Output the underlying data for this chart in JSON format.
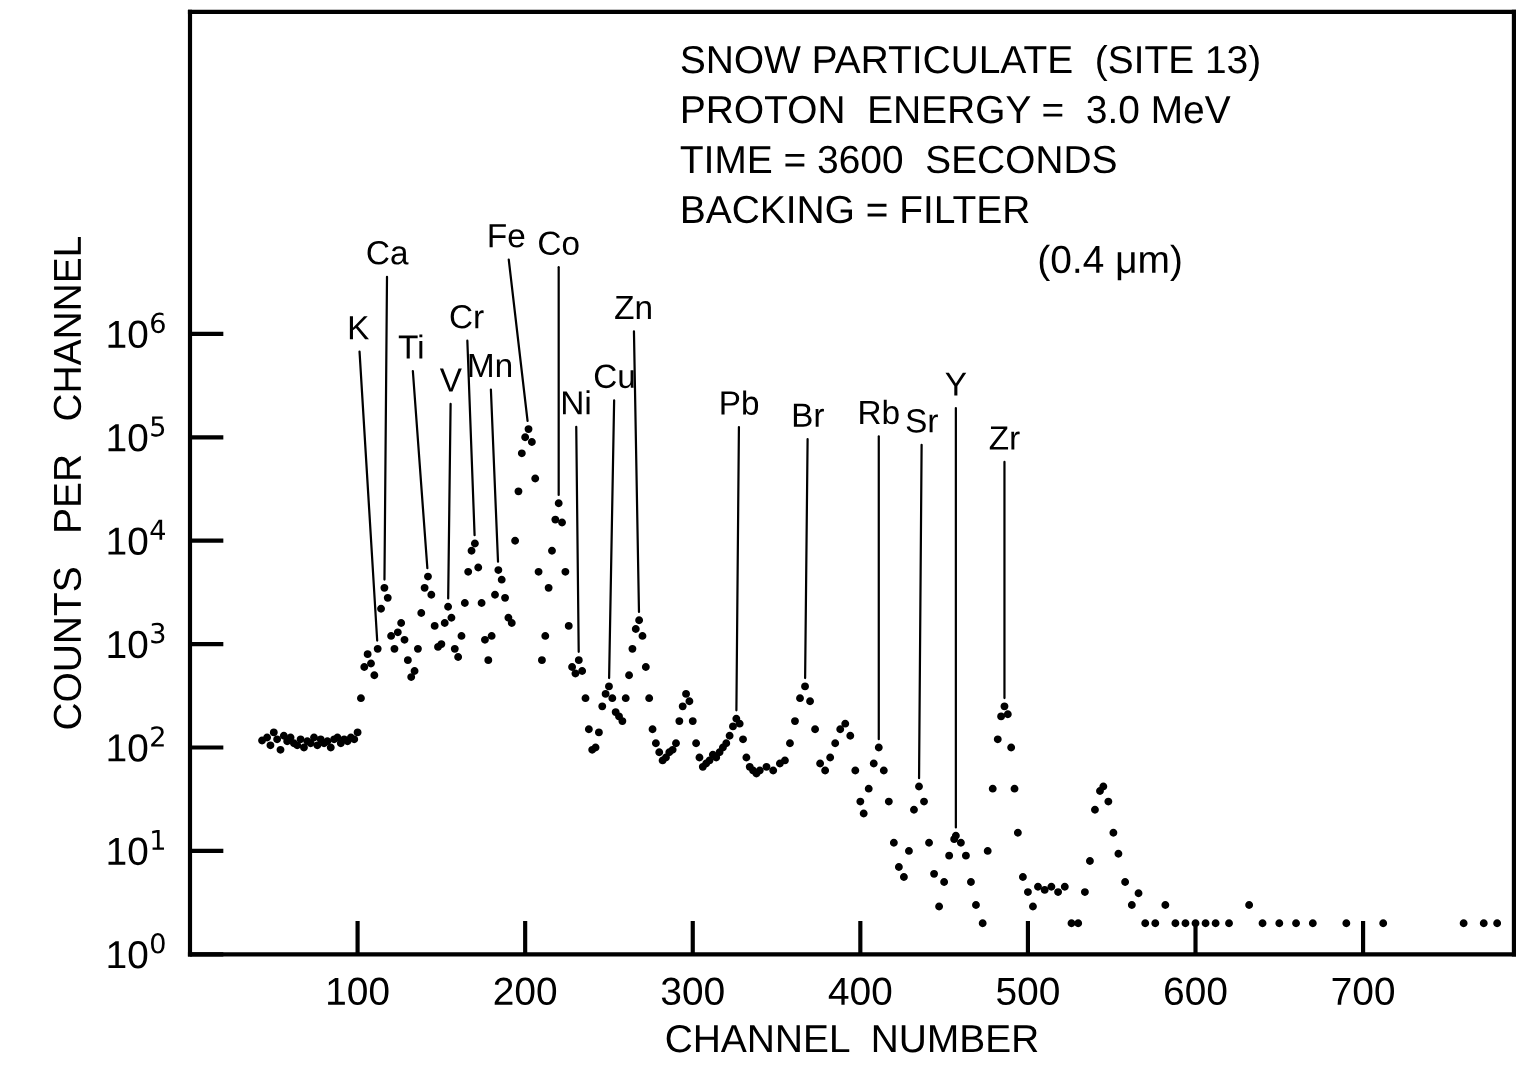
{
  "chart_data": {
    "type": "scatter",
    "xlabel": "CHANNEL  NUMBER",
    "ylabel": "COUNTS   PER   CHANNEL",
    "log": "y",
    "grid": false,
    "marker": "circle",
    "legend": false,
    "xlim": [
      0,
      790
    ],
    "xticks": [
      100,
      200,
      300,
      400,
      500,
      600,
      700
    ],
    "ylim": [
      1,
      1300000000
    ],
    "yticks": [
      {
        "value": 1,
        "label": "10$^{0}$"
      },
      {
        "value": 10,
        "label": "10$^{1}$"
      },
      {
        "value": 100,
        "label": "10$^{2}$"
      },
      {
        "value": 1000,
        "label": "10$^{3}$"
      },
      {
        "value": 10000,
        "label": "10$^{4}$"
      },
      {
        "value": 100000,
        "label": "10$^{5}$"
      },
      {
        "value": 1000000,
        "label": "10$^{6}$"
      }
    ],
    "series": [
      {
        "color": "#000000",
        "x": [
          43,
          46,
          48,
          50,
          52,
          54,
          56,
          58,
          60,
          62,
          64,
          66,
          68,
          70,
          72,
          74,
          76,
          78,
          80,
          82,
          84,
          86,
          88,
          90,
          92,
          94,
          96,
          98,
          100,
          102,
          104,
          106,
          108,
          110,
          112,
          114,
          116,
          118,
          120,
          122,
          124,
          126,
          128,
          130,
          132,
          134,
          136,
          138,
          140,
          142,
          144,
          146,
          148,
          150,
          152,
          154,
          156,
          158,
          160,
          162,
          164,
          166,
          168,
          170,
          172,
          174,
          176,
          178,
          180,
          182,
          184,
          186,
          188,
          190,
          192,
          194,
          196,
          198,
          200,
          202,
          204,
          206,
          208,
          210,
          212,
          214,
          216,
          218,
          220,
          222,
          224,
          226,
          228,
          230,
          232,
          234,
          236,
          238,
          240,
          242,
          244,
          246,
          248,
          250,
          252,
          254,
          256,
          258,
          260,
          262,
          264,
          266,
          268,
          270,
          272,
          274,
          276,
          278,
          280,
          282,
          284,
          286,
          288,
          290,
          292,
          294,
          296,
          298,
          300,
          302,
          304,
          306,
          308,
          310,
          312,
          314,
          316,
          318,
          320,
          322,
          324,
          326,
          328,
          330,
          332,
          334,
          336,
          338,
          340,
          344,
          348,
          352,
          355,
          358,
          361,
          364,
          367,
          370,
          373,
          376,
          379,
          382,
          385,
          388,
          391,
          394,
          397,
          400,
          402,
          405,
          408,
          411,
          414,
          417,
          420,
          423,
          426,
          429,
          432,
          435,
          438,
          441,
          444,
          447,
          450,
          453,
          456,
          457,
          460,
          463,
          466,
          469,
          473,
          476,
          479,
          482,
          484,
          486,
          488,
          490,
          492,
          494,
          497,
          500,
          503,
          506,
          510,
          514,
          518,
          522,
          526,
          530,
          534,
          537,
          540,
          543,
          545,
          548,
          551,
          554,
          558,
          562,
          566,
          570,
          576,
          582,
          588,
          594,
          600,
          606,
          612,
          620,
          632,
          640,
          650,
          660,
          670,
          690,
          712,
          760,
          772,
          780
        ],
        "values": [
          117,
          125,
          105,
          140,
          120,
          95,
          130,
          115,
          125,
          110,
          105,
          120,
          100,
          115,
          110,
          125,
          105,
          120,
          110,
          115,
          100,
          120,
          125,
          110,
          120,
          115,
          125,
          120,
          140,
          300,
          600,
          800,
          650,
          500,
          900,
          2200,
          3500,
          2800,
          1200,
          900,
          1300,
          1600,
          1100,
          700,
          480,
          550,
          900,
          2000,
          3500,
          4500,
          3000,
          1500,
          940,
          1000,
          1600,
          2300,
          1800,
          900,
          750,
          1200,
          2500,
          5000,
          8000,
          9400,
          5500,
          2500,
          1100,
          700,
          1200,
          3000,
          5200,
          4200,
          2800,
          1800,
          1600,
          10000,
          30000,
          70000,
          100000,
          120000,
          90000,
          40000,
          5000,
          700,
          1200,
          3500,
          8000,
          16000,
          23000,
          15000,
          5000,
          1500,
          600,
          520,
          700,
          550,
          300,
          150,
          95,
          100,
          140,
          250,
          330,
          390,
          300,
          220,
          200,
          180,
          300,
          500,
          900,
          1400,
          1700,
          1200,
          600,
          300,
          150,
          110,
          90,
          75,
          80,
          90,
          95,
          110,
          180,
          250,
          330,
          280,
          180,
          110,
          80,
          65,
          70,
          75,
          85,
          80,
          90,
          100,
          110,
          130,
          160,
          190,
          170,
          120,
          80,
          65,
          60,
          56,
          60,
          65,
          60,
          70,
          75,
          110,
          180,
          300,
          390,
          280,
          150,
          70,
          60,
          80,
          110,
          150,
          170,
          130,
          60,
          30,
          23,
          40,
          70,
          100,
          60,
          30,
          12,
          7,
          5.6,
          10,
          25,
          42,
          30,
          12,
          6,
          2.9,
          5,
          9,
          13,
          14,
          12,
          9,
          5,
          3,
          2,
          10,
          40,
          120,
          200,
          250,
          210,
          100,
          40,
          15,
          5.6,
          4,
          2.9,
          4.5,
          4.2,
          4.5,
          4,
          4.5,
          2,
          2,
          4,
          8,
          25,
          38,
          42,
          30,
          15,
          9.4,
          5,
          3,
          3.9,
          2,
          2,
          3,
          2,
          2,
          2,
          2,
          2,
          2,
          3,
          2,
          2,
          2,
          2,
          2,
          2,
          2,
          2,
          2
        ]
      }
    ],
    "annotations": [
      "SNOW PARTICULATE  (SITE 13)",
      "PROTON  ENERGY =  3.0 MeV",
      "TIME = 3600  SECONDS",
      "BACKING = FILTER",
      "(0.4 μm)",
      {
        "text": "K",
        "x": 112,
        "y": 900
      },
      {
        "text": "Ca",
        "x": 116,
        "y": 3500
      },
      {
        "text": "Ti",
        "x": 142,
        "y": 4500
      },
      {
        "text": "V",
        "x": 154,
        "y": 2300
      },
      {
        "text": "Cr",
        "x": 170,
        "y": 9400
      },
      {
        "text": "Mn",
        "x": 184,
        "y": 5200
      },
      {
        "text": "Fe",
        "x": 202,
        "y": 120000
      },
      {
        "text": "Co",
        "x": 220,
        "y": 23000
      },
      {
        "text": "Ni",
        "x": 232,
        "y": 700
      },
      {
        "text": "Cu",
        "x": 250,
        "y": 390
      },
      {
        "text": "Zn",
        "x": 268,
        "y": 1700
      },
      {
        "text": "Pb",
        "x": 326,
        "y": 190
      },
      {
        "text": "Br",
        "x": 367,
        "y": 390
      },
      {
        "text": "Rb",
        "x": 411,
        "y": 100
      },
      {
        "text": "Sr",
        "x": 435,
        "y": 42
      },
      {
        "text": "Y",
        "x": 457,
        "y": 14
      },
      {
        "text": "Zr",
        "x": 486,
        "y": 250
      }
    ]
  }
}
